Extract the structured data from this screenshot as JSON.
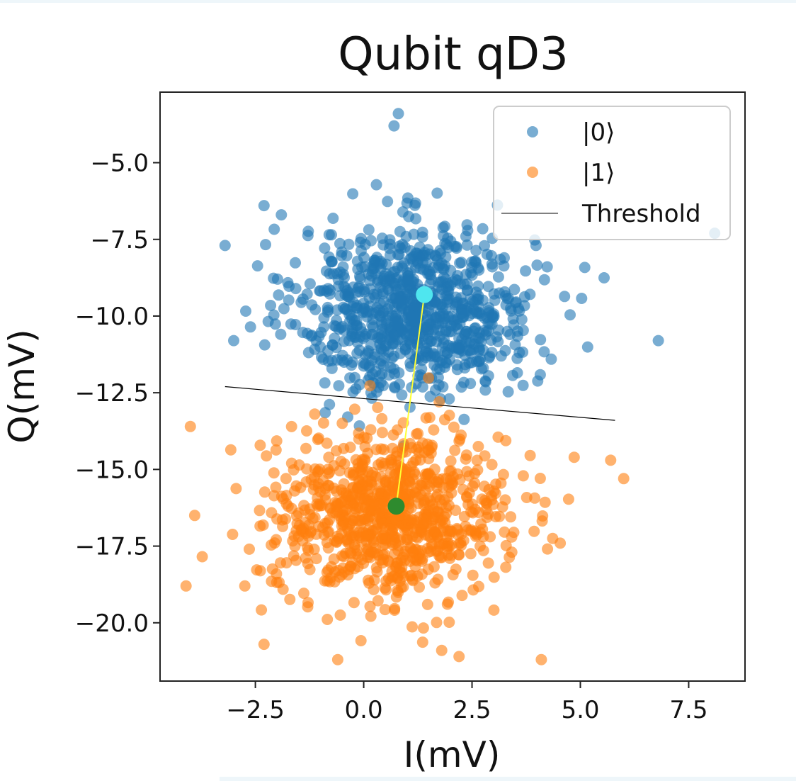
{
  "chart_data": {
    "type": "scatter",
    "title": "Qubit qD3",
    "xlabel": "I(mV)",
    "ylabel": "Q(mV)",
    "xlim": [
      -4.7,
      8.8
    ],
    "ylim": [
      -21.9,
      -2.7
    ],
    "xticks": [
      "−2.5",
      "0.0",
      "2.5",
      "5.0",
      "7.5"
    ],
    "yticks": [
      "−5.0",
      "−7.5",
      "−10.0",
      "−12.5",
      "−15.0",
      "−17.5",
      "−20.0"
    ],
    "xtick_values": [
      -2.5,
      0.0,
      2.5,
      5.0,
      7.5
    ],
    "ytick_values": [
      -5.0,
      -7.5,
      -10.0,
      -12.5,
      -15.0,
      -17.5,
      -20.0
    ],
    "legend_position": "top-right",
    "grid": false,
    "series": [
      {
        "name": "|0⟩",
        "color": "#1f77b4",
        "center": [
          1.2,
          -9.8
        ],
        "spread": [
          1.35,
          1.35
        ],
        "count": 900,
        "outliers": [
          [
            -3.2,
            -7.7
          ],
          [
            -3.0,
            -10.8
          ],
          [
            6.8,
            -10.8
          ],
          [
            8.1,
            -7.3
          ],
          [
            0.8,
            -3.4
          ],
          [
            0.7,
            -3.8
          ],
          [
            -2.3,
            -6.4
          ],
          [
            -1.9,
            -6.7
          ]
        ]
      },
      {
        "name": "|1⟩",
        "color": "#ff7f0e",
        "center": [
          0.6,
          -16.5
        ],
        "spread": [
          1.35,
          1.35
        ],
        "count": 900,
        "outliers": [
          [
            -4.1,
            -18.8
          ],
          [
            -3.9,
            -16.5
          ],
          [
            -4.0,
            -13.6
          ],
          [
            6.0,
            -15.3
          ],
          [
            5.7,
            -14.7
          ],
          [
            4.1,
            -21.2
          ],
          [
            -0.6,
            -21.2
          ],
          [
            -2.3,
            -20.7
          ],
          [
            2.2,
            -21.1
          ],
          [
            1.8,
            -20.9
          ]
        ]
      }
    ],
    "threshold": {
      "name": "Threshold",
      "x": [
        -3.2,
        5.8
      ],
      "y": [
        -12.3,
        -13.4
      ],
      "color": "#000000"
    },
    "centroids": [
      {
        "label": "|0⟩ center",
        "x": 1.4,
        "y": -9.3,
        "color": "#4fe6ef"
      },
      {
        "label": "|1⟩ center",
        "x": 0.75,
        "y": -16.2,
        "color": "#2e8b2e"
      }
    ],
    "centroid_link_color": "#ffff33"
  },
  "legend": {
    "entries": [
      "|0⟩",
      "|1⟩",
      "Threshold"
    ]
  }
}
